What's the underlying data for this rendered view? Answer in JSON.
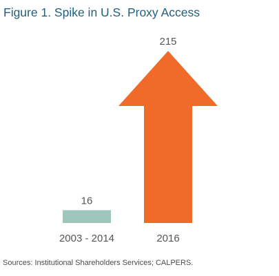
{
  "title": "Figure 1. Spike in U.S. Proxy Access",
  "source": "Sources: Institutional Shareholders Services; CALPERS.",
  "colors": {
    "title": "#1f5f7d",
    "bar": "#9ec7bc",
    "arrow": "#f06a2a",
    "text": "#555555"
  },
  "chart_data": {
    "type": "bar",
    "title": "Figure 1. Spike in U.S. Proxy Access",
    "categories": [
      "2003 - 2014",
      "2016"
    ],
    "values": [
      16,
      215
    ],
    "data_labels": [
      "16",
      "215"
    ],
    "marks": [
      "bar",
      "arrow-up"
    ],
    "xlabel": "",
    "ylabel": "",
    "ylim": [
      0,
      215
    ],
    "grid": false,
    "legend": "none"
  }
}
